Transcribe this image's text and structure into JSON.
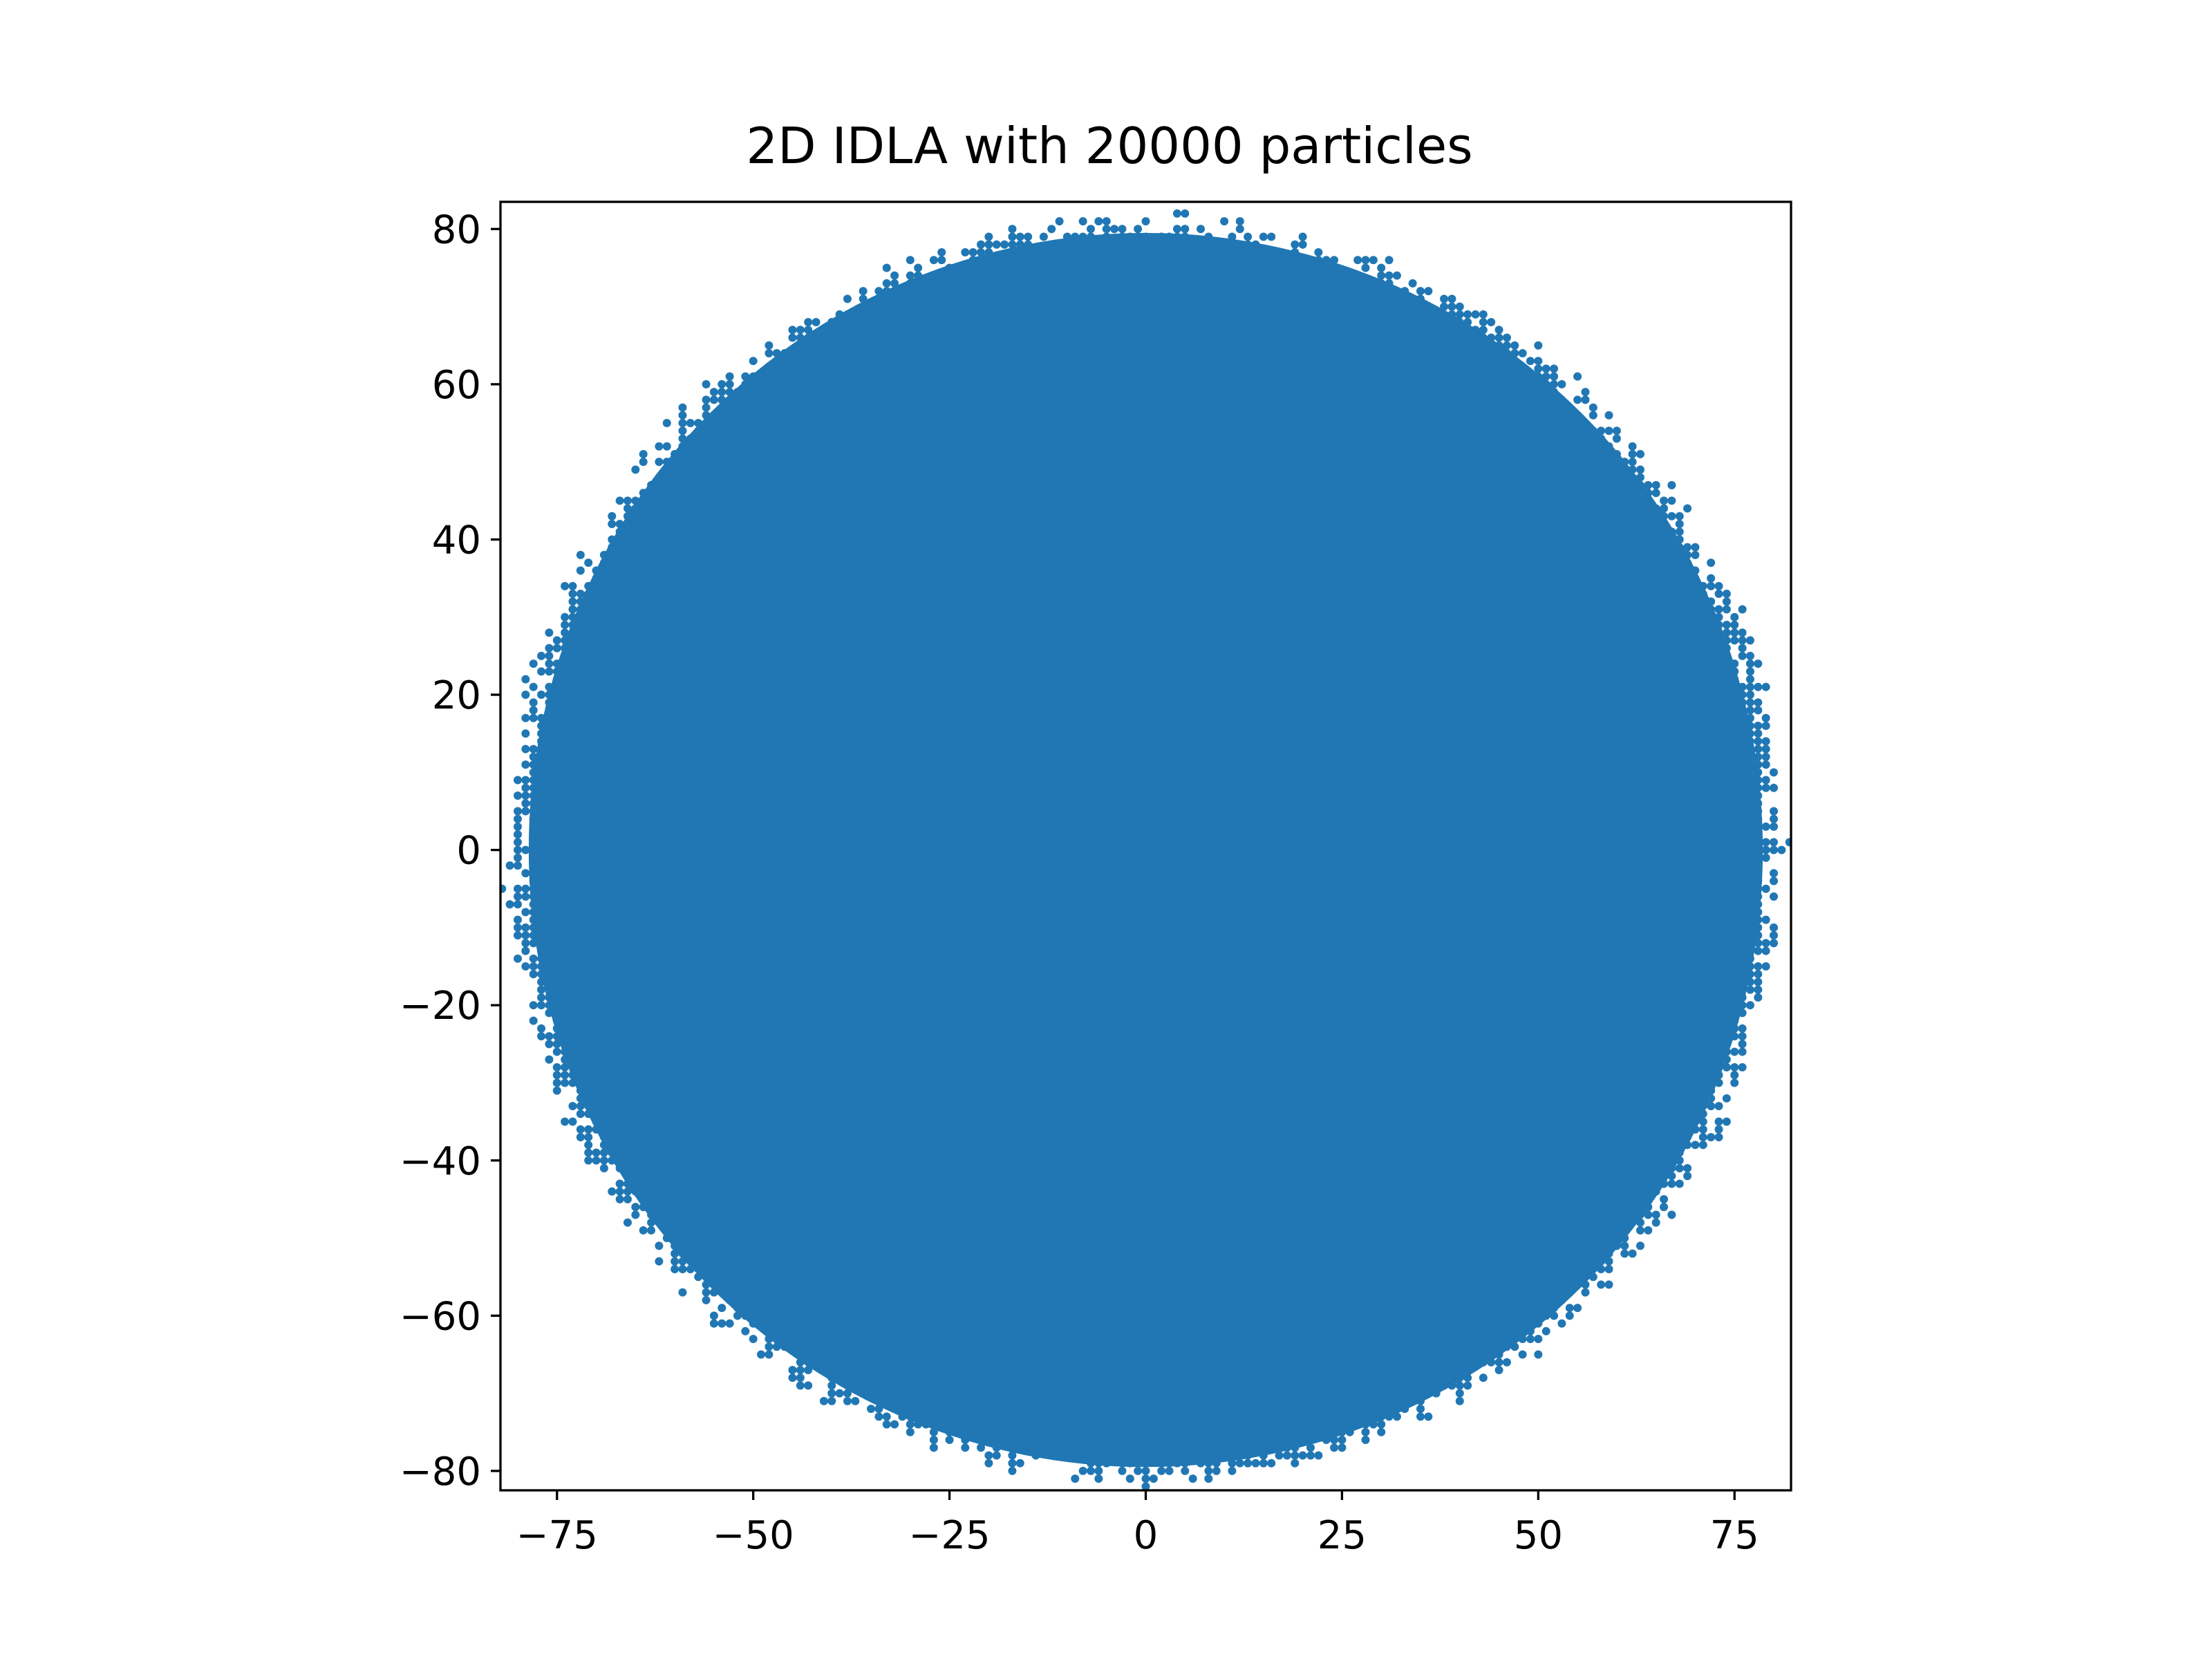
{
  "chart_data": {
    "type": "scatter",
    "title": "2D IDLA with 20000 particles",
    "xlabel": "",
    "ylabel": "",
    "xlim": [
      -82.2,
      82.2
    ],
    "ylim": [
      -82.5,
      83.5
    ],
    "x_ticks": [
      -75,
      -50,
      -25,
      0,
      25,
      50,
      75
    ],
    "y_ticks": [
      -80,
      -60,
      -40,
      -20,
      0,
      20,
      40,
      60,
      80
    ],
    "x_tick_labels": [
      "−75",
      "−50",
      "−25",
      "0",
      "25",
      "50",
      "75"
    ],
    "y_tick_labels": [
      "−80",
      "−60",
      "−40",
      "−20",
      "0",
      "20",
      "40",
      "60",
      "80"
    ],
    "aspect": "equal",
    "grid": false,
    "legend": "none",
    "particle_count": 20000,
    "shape": "disc",
    "center": [
      0,
      0
    ],
    "radius": 79.8,
    "color": "#2077b4"
  }
}
